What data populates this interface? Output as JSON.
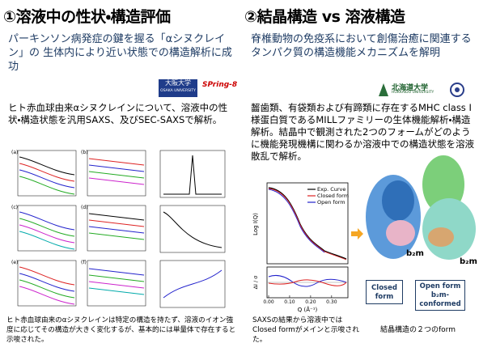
{
  "left": {
    "heading": "①溶液中の性状・構造評価",
    "subtitle": "パーキンソン病発症の鍵を握る「αシヌクレイン」の 生体内により近い状態での構造解析に成功",
    "logos": [
      "大阪大学",
      "OSAKA UNIVERSITY",
      "SPring-8"
    ],
    "body": "ヒト赤血球由来αシヌクレインについて、溶液中の性状・構造状態を汎用SAXS、及びSEC-SAXSで解析。",
    "panels": [
      "(a)",
      "(b)",
      "(c)",
      "(d)",
      "(e)",
      "(f)"
    ],
    "caption": "ヒト赤血球由来のαシヌクレインは特定の構造を持たず、溶液のイオン強度に応じてその構造が大きく変化するが、基本的には単量体で存在すると示唆された。"
  },
  "right": {
    "heading": "②結晶構造 vs 溶液構造",
    "subtitle": "脊椎動物の免疫系において創傷治癒に関連するタンパク質の構造機能メカニズムを解明",
    "logos": [
      "北海道大学",
      "HOKKAIDO UNIVERSITY"
    ],
    "body": "齧歯類、有袋類および有蹄類に存在するMHC class I様蛋白質であるMILLファミリーの生体機能解析・構造解析。結晶中で観測された2つのフォームがどのように機能発現機構に関わるか溶液中での構造状態を溶液散乱で解析。",
    "plot": {
      "legend": [
        "Exp. Curve",
        "Closed form",
        "Open form"
      ],
      "y_label": "Log I(Q)",
      "y2_label": "ΔI / σ",
      "x_label": "Q (Å⁻¹)",
      "x_ticks": [
        "0.00",
        "0.10",
        "0.20",
        "0.30"
      ]
    },
    "plot_caption": "SAXSの結果から溶液中ではClosed formがメインと示唆された。",
    "structure_labels": [
      "b₂m",
      "b₂m"
    ],
    "boxes": [
      "Closed form",
      "Open form b₂m-conformed"
    ],
    "structure_caption": "結晶構造の２つのform"
  }
}
